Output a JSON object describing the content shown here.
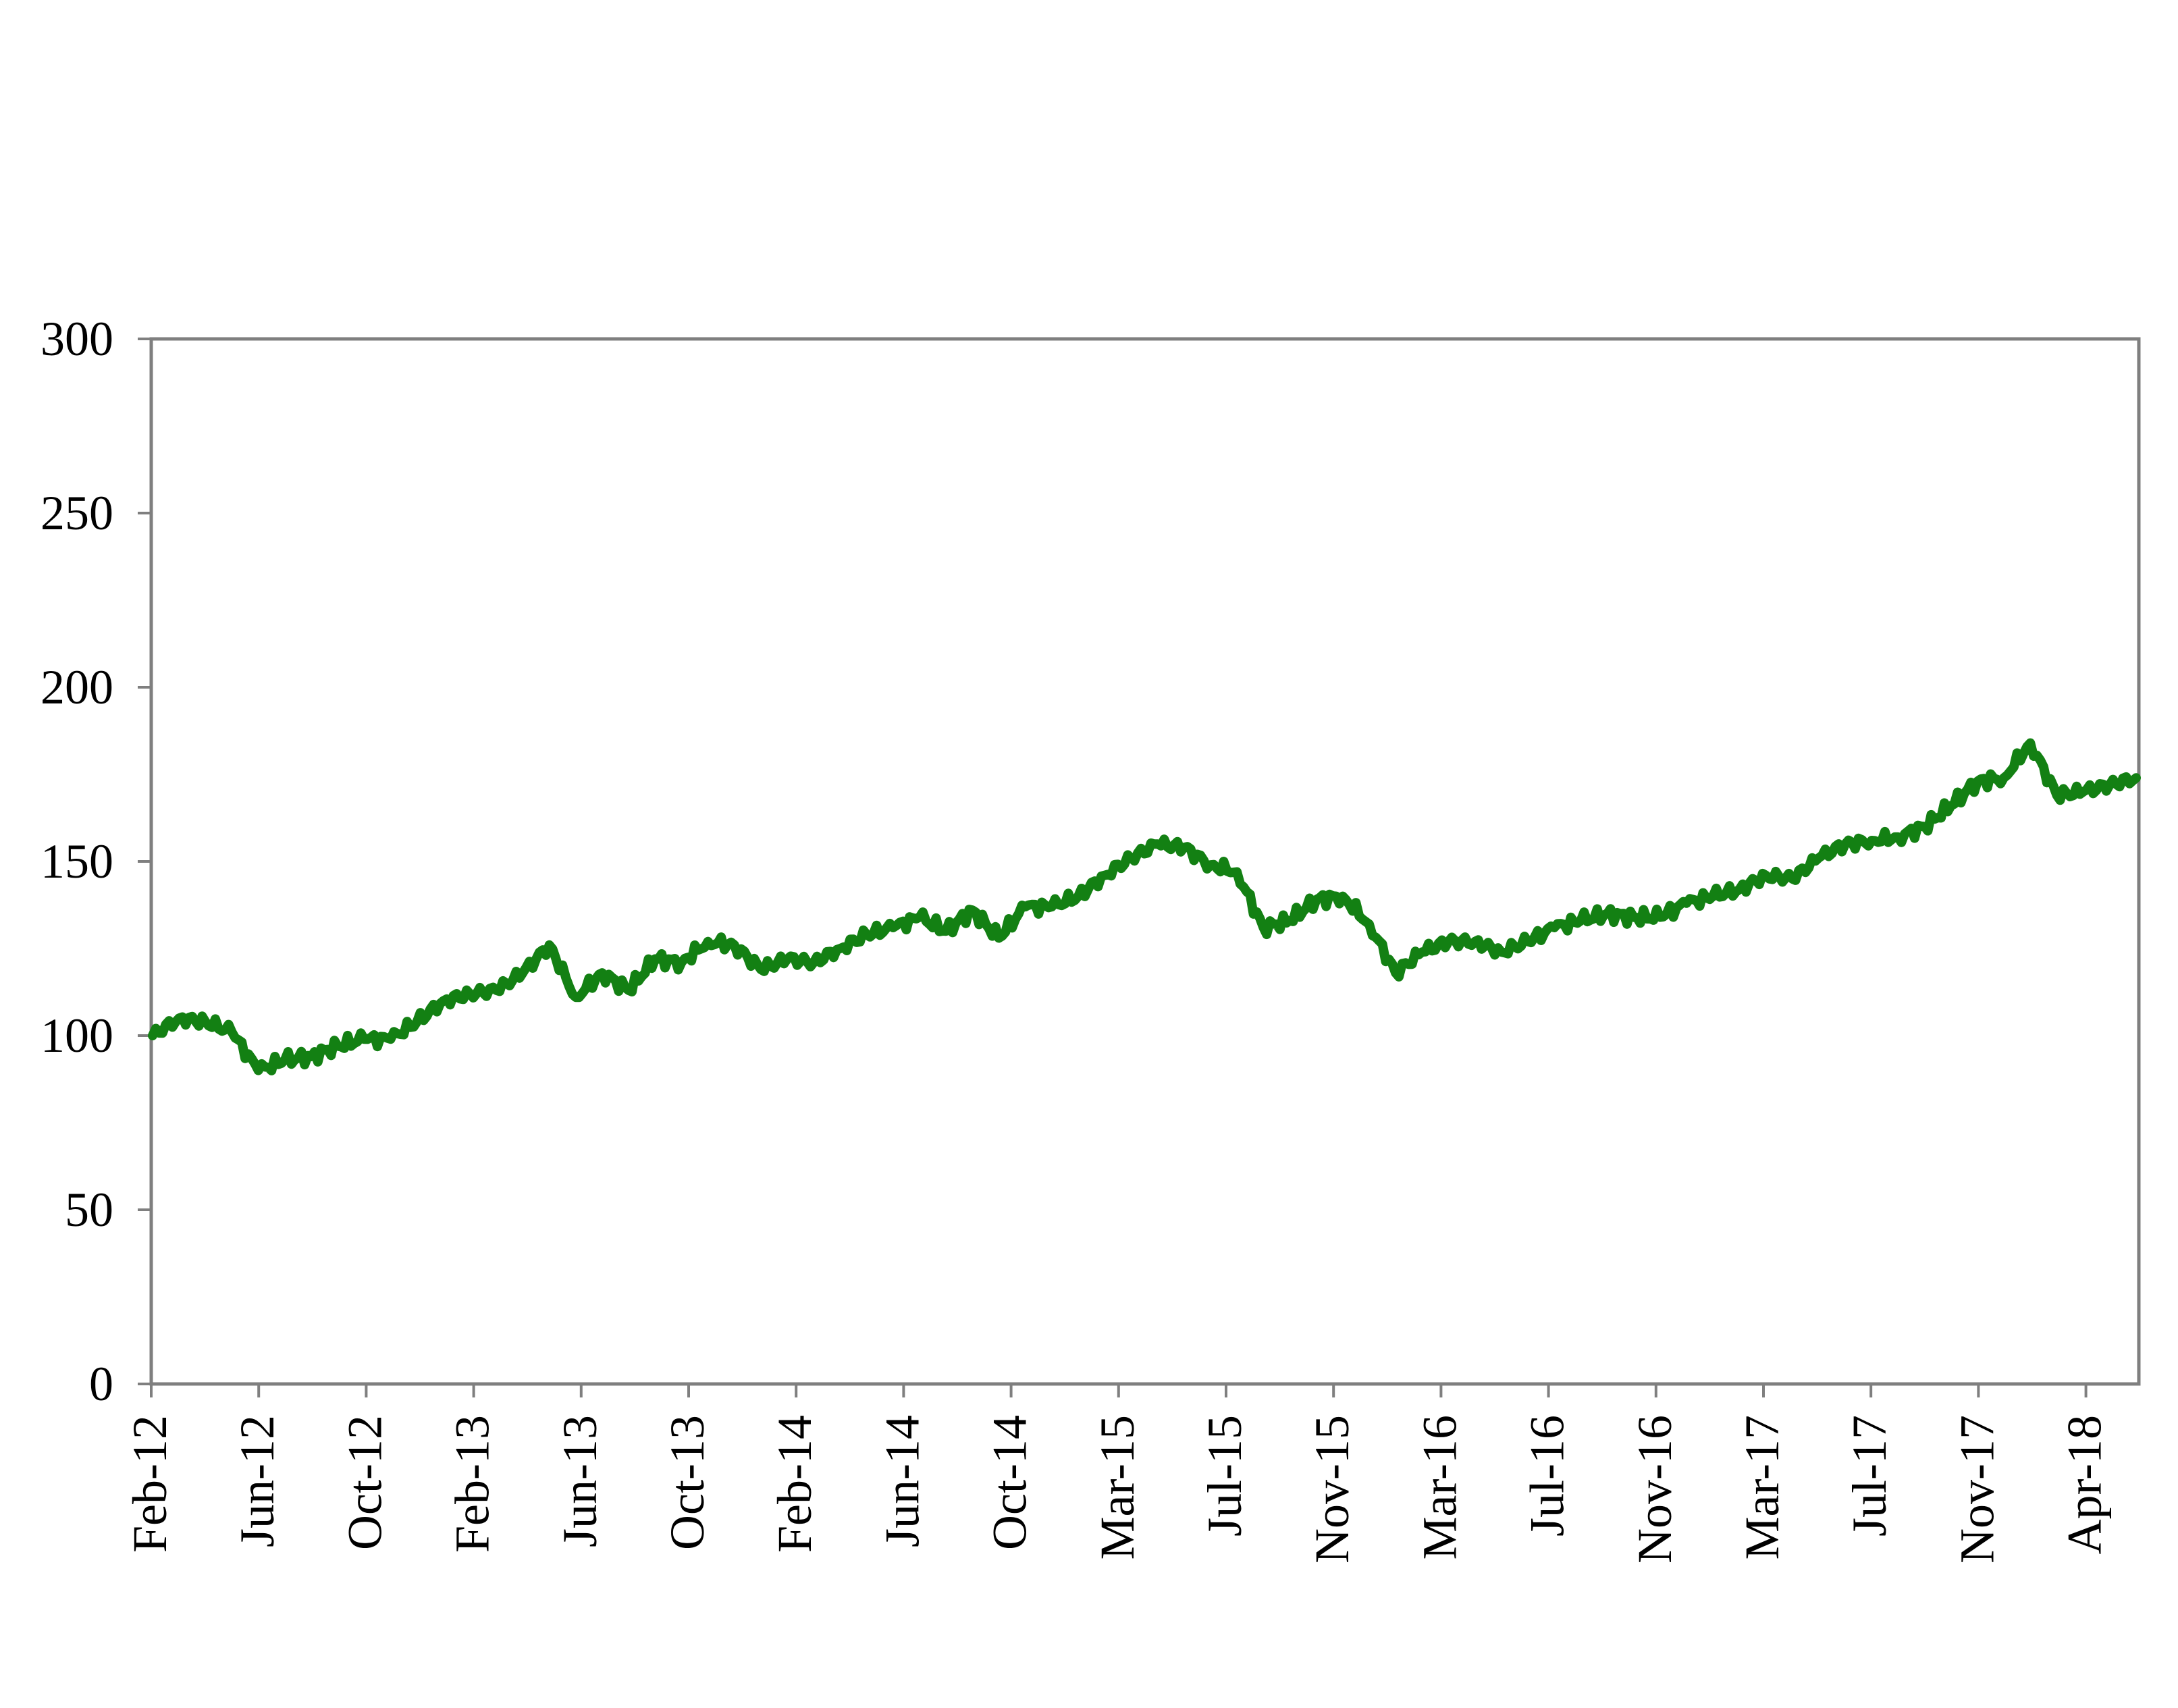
{
  "chart_data": {
    "type": "line",
    "title": "",
    "xlabel": "",
    "ylabel": "",
    "ylim": [
      0,
      300
    ],
    "yticks": [
      0,
      50,
      100,
      150,
      200,
      250,
      300
    ],
    "x_tick_labels": [
      "Feb-12",
      "Jun-12",
      "Oct-12",
      "Feb-13",
      "Jun-13",
      "Oct-13",
      "Feb-14",
      "Jun-14",
      "Oct-14",
      "Mar-15",
      "Jul-15",
      "Nov-15",
      "Mar-16",
      "Jul-16",
      "Nov-16",
      "Mar-17",
      "Jul-17",
      "Nov-17",
      "Apr-18"
    ],
    "grid": false,
    "legend": "none",
    "colors": {
      "line": "#138013",
      "axis": "#7f7f7f",
      "text": "#000000"
    },
    "series": [
      {
        "x": [
          "Feb-12",
          "Mar-12",
          "Apr-12",
          "May-12",
          "Jun-12",
          "Jul-12",
          "Aug-12",
          "Sep-12",
          "Oct-12",
          "Nov-12",
          "Dec-12",
          "Jan-13",
          "Feb-13",
          "Mar-13",
          "Apr-13",
          "May-13",
          "Jun-13",
          "Jul-13",
          "Aug-13",
          "Sep-13",
          "Oct-13",
          "Nov-13",
          "Dec-13",
          "Jan-14",
          "Feb-14",
          "Mar-14",
          "Apr-14",
          "May-14",
          "Jun-14",
          "Jul-14",
          "Aug-14",
          "Sep-14",
          "Oct-14",
          "Nov-14",
          "Dec-14",
          "Jan-15",
          "Feb-15",
          "Mar-15",
          "Apr-15",
          "May-15",
          "Jun-15",
          "Jul-15",
          "Aug-15",
          "Sep-15",
          "Oct-15",
          "Nov-15",
          "Dec-15",
          "Jan-16",
          "Feb-16",
          "Mar-16",
          "Apr-16",
          "May-16",
          "Jun-16",
          "Jul-16",
          "Aug-16",
          "Sep-16",
          "Oct-16",
          "Nov-16",
          "Dec-16",
          "Jan-17",
          "Feb-17",
          "Mar-17",
          "Apr-17",
          "May-17",
          "Jun-17",
          "Jul-17",
          "Aug-17",
          "Sep-17",
          "Oct-17",
          "Nov-17",
          "Dec-17",
          "Jan-18",
          "Feb-18",
          "Mar-18",
          "Apr-18",
          "May-18"
        ],
        "values": [
          100,
          105,
          104,
          101,
          90,
          93,
          94,
          97,
          99,
          99,
          104,
          110,
          112,
          113,
          118,
          126,
          111,
          118,
          113,
          122,
          121,
          127,
          126,
          119,
          122,
          121,
          125,
          129,
          131,
          134,
          130,
          136,
          128,
          137,
          137,
          140,
          146,
          151,
          155,
          154,
          149,
          147,
          131,
          133,
          139,
          140,
          132,
          118,
          124,
          127,
          127,
          124,
          127,
          131,
          133,
          135,
          134,
          134,
          138,
          140,
          142,
          146,
          145,
          151,
          155,
          156,
          157,
          160,
          166,
          173,
          174,
          184,
          169,
          170,
          172,
          174
        ]
      }
    ]
  }
}
